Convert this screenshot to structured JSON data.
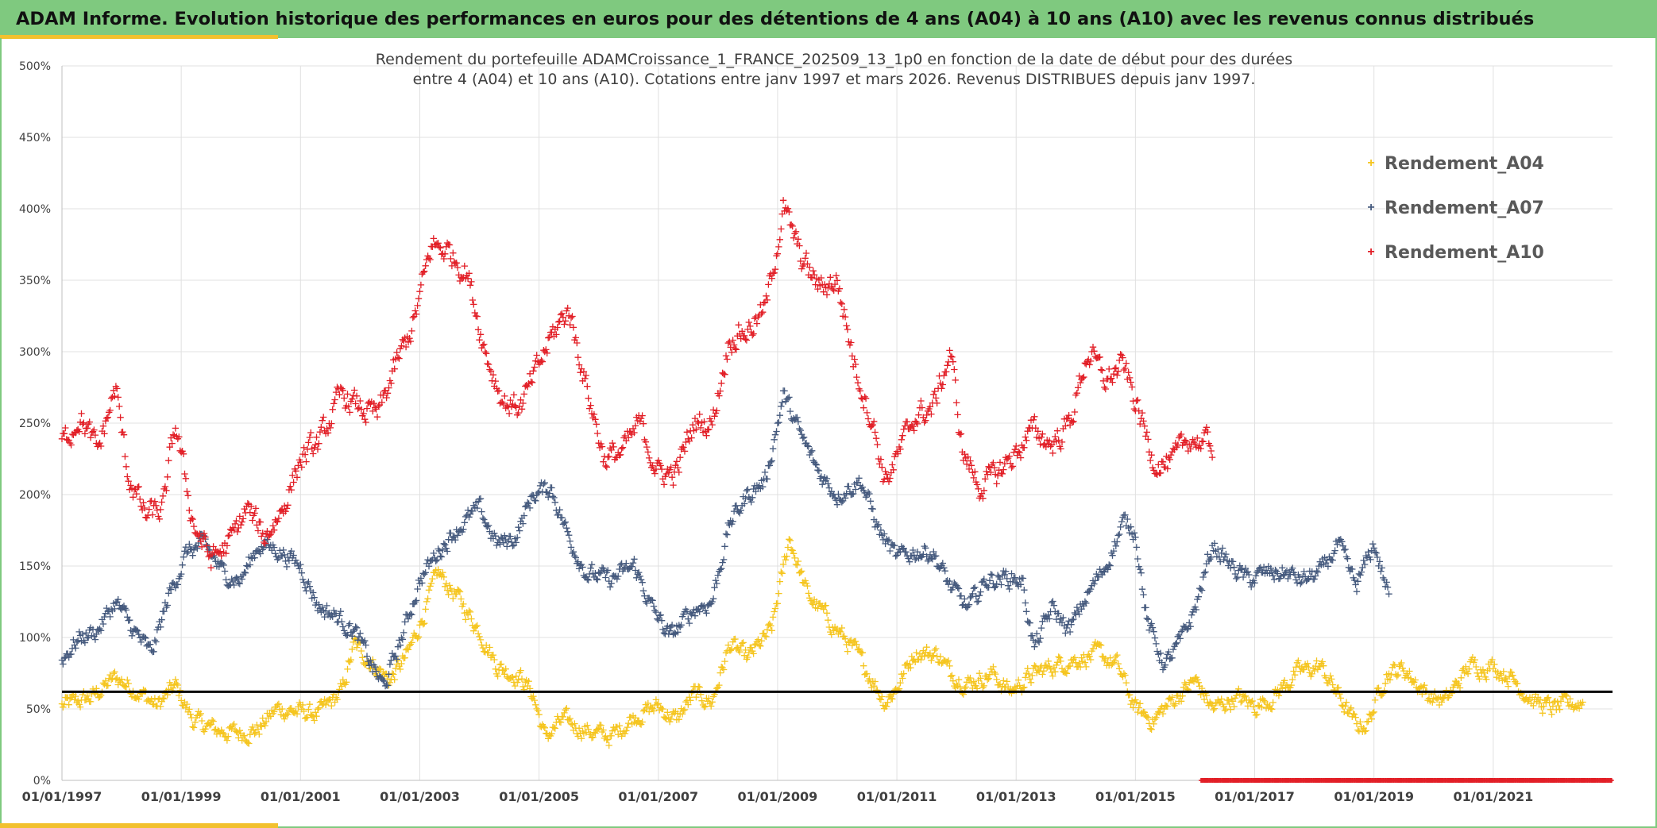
{
  "header": {
    "title": "ADAM Informe. Evolution historique des performances en euros pour des détentions de 4 ans (A04) à 10 ans (A10) avec les revenus connus distribués"
  },
  "chart_data": {
    "type": "scatter",
    "title_line1": "Rendement du portefeuille ADAMCroissance_1_FRANCE_202509_13_1p0  en fonction de la date de début pour des durées",
    "title_line2": "entre 4 (A04) et 10 ans (A10). Cotations entre janv 1997 et mars 2026. Revenus DISTRIBUES depuis janv 1997.",
    "xlabel": "",
    "ylabel": "",
    "xlim": [
      1997.0,
      2023.0
    ],
    "ylim": [
      0,
      500
    ],
    "x_ticks": [
      1997,
      1999,
      2001,
      2003,
      2005,
      2007,
      2009,
      2011,
      2013,
      2015,
      2017,
      2019,
      2021
    ],
    "x_tick_labels": [
      "01/01/1997",
      "01/01/1999",
      "01/01/2001",
      "01/01/2003",
      "01/01/2005",
      "01/01/2007",
      "01/01/2009",
      "01/01/2011",
      "01/01/2013",
      "01/01/2015",
      "01/01/2017",
      "01/01/2019",
      "01/01/2021"
    ],
    "y_ticks": [
      0,
      50,
      100,
      150,
      200,
      250,
      300,
      350,
      400,
      450,
      500
    ],
    "y_tick_labels": [
      "0%",
      "50%",
      "100%",
      "150%",
      "200%",
      "250%",
      "300%",
      "350%",
      "400%",
      "450%",
      "500%"
    ],
    "reference_line": {
      "y": 62,
      "color": "#000000"
    },
    "legend_position": "top-right",
    "grid": true,
    "series": [
      {
        "name": "Rendement_A04",
        "marker": "+",
        "color": "#f5c51f",
        "x_start": 1997.0,
        "x_end": 2022.5,
        "anchors": [
          [
            1997.0,
            52
          ],
          [
            1997.5,
            58
          ],
          [
            1997.9,
            72
          ],
          [
            1998.3,
            62
          ],
          [
            1998.6,
            52
          ],
          [
            1998.9,
            66
          ],
          [
            1999.2,
            42
          ],
          [
            1999.6,
            35
          ],
          [
            2000.0,
            33
          ],
          [
            2000.3,
            36
          ],
          [
            2000.6,
            50
          ],
          [
            2001.0,
            48
          ],
          [
            2001.3,
            46
          ],
          [
            2001.7,
            62
          ],
          [
            2001.9,
            95
          ],
          [
            2002.2,
            82
          ],
          [
            2002.5,
            70
          ],
          [
            2002.8,
            88
          ],
          [
            2003.1,
            120
          ],
          [
            2003.3,
            145
          ],
          [
            2003.6,
            130
          ],
          [
            2004.0,
            105
          ],
          [
            2004.3,
            80
          ],
          [
            2004.7,
            72
          ],
          [
            2004.9,
            60
          ],
          [
            2005.1,
            30
          ],
          [
            2005.4,
            42
          ],
          [
            2005.8,
            35
          ],
          [
            2006.2,
            30
          ],
          [
            2006.6,
            45
          ],
          [
            2007.0,
            52
          ],
          [
            2007.3,
            42
          ],
          [
            2007.6,
            60
          ],
          [
            2007.9,
            55
          ],
          [
            2008.2,
            95
          ],
          [
            2008.5,
            85
          ],
          [
            2008.9,
            105
          ],
          [
            2009.2,
            170
          ],
          [
            2009.5,
            130
          ],
          [
            2009.9,
            110
          ],
          [
            2010.3,
            90
          ],
          [
            2010.6,
            70
          ],
          [
            2010.8,
            55
          ],
          [
            2011.0,
            65
          ],
          [
            2011.3,
            90
          ],
          [
            2011.7,
            88
          ],
          [
            2011.9,
            75
          ],
          [
            2012.2,
            68
          ],
          [
            2012.6,
            75
          ],
          [
            2012.9,
            62
          ],
          [
            2013.2,
            72
          ],
          [
            2013.6,
            80
          ],
          [
            2014.0,
            85
          ],
          [
            2014.4,
            88
          ],
          [
            2014.7,
            80
          ],
          [
            2015.0,
            50
          ],
          [
            2015.3,
            42
          ],
          [
            2015.6,
            55
          ],
          [
            2016.0,
            70
          ],
          [
            2016.3,
            50
          ],
          [
            2016.7,
            58
          ],
          [
            2017.0,
            52
          ],
          [
            2017.3,
            58
          ],
          [
            2017.7,
            75
          ],
          [
            2018.1,
            80
          ],
          [
            2018.4,
            60
          ],
          [
            2018.7,
            38
          ],
          [
            2018.9,
            40
          ],
          [
            2019.2,
            75
          ],
          [
            2019.5,
            78
          ],
          [
            2019.9,
            60
          ],
          [
            2020.2,
            55
          ],
          [
            2020.6,
            80
          ],
          [
            2021.0,
            80
          ],
          [
            2021.3,
            72
          ],
          [
            2021.7,
            55
          ],
          [
            2022.0,
            50
          ],
          [
            2022.5,
            55
          ]
        ]
      },
      {
        "name": "Rendement_A07",
        "marker": "+",
        "color": "#44597d",
        "x_start": 1997.0,
        "x_end": 2019.25,
        "anchors": [
          [
            1997.0,
            85
          ],
          [
            1997.3,
            100
          ],
          [
            1997.6,
            105
          ],
          [
            1997.9,
            125
          ],
          [
            1998.2,
            105
          ],
          [
            1998.5,
            88
          ],
          [
            1998.8,
            130
          ],
          [
            1999.1,
            160
          ],
          [
            1999.4,
            165
          ],
          [
            1999.7,
            145
          ],
          [
            2000.0,
            140
          ],
          [
            2000.3,
            165
          ],
          [
            2000.6,
            162
          ],
          [
            2001.0,
            150
          ],
          [
            2001.3,
            122
          ],
          [
            2001.6,
            115
          ],
          [
            2001.9,
            105
          ],
          [
            2002.2,
            80
          ],
          [
            2002.4,
            65
          ],
          [
            2002.7,
            100
          ],
          [
            2003.0,
            140
          ],
          [
            2003.3,
            160
          ],
          [
            2003.6,
            175
          ],
          [
            2004.0,
            190
          ],
          [
            2004.3,
            165
          ],
          [
            2004.6,
            170
          ],
          [
            2004.9,
            200
          ],
          [
            2005.2,
            205
          ],
          [
            2005.5,
            170
          ],
          [
            2005.8,
            145
          ],
          [
            2006.2,
            140
          ],
          [
            2006.6,
            150
          ],
          [
            2006.9,
            120
          ],
          [
            2007.2,
            100
          ],
          [
            2007.6,
            120
          ],
          [
            2007.9,
            125
          ],
          [
            2008.2,
            180
          ],
          [
            2008.5,
            200
          ],
          [
            2008.8,
            210
          ],
          [
            2009.1,
            270
          ],
          [
            2009.4,
            240
          ],
          [
            2009.7,
            215
          ],
          [
            2010.0,
            200
          ],
          [
            2010.4,
            210
          ],
          [
            2010.7,
            175
          ],
          [
            2011.0,
            155
          ],
          [
            2011.3,
            160
          ],
          [
            2011.6,
            160
          ],
          [
            2011.9,
            135
          ],
          [
            2012.2,
            120
          ],
          [
            2012.5,
            140
          ],
          [
            2012.8,
            142
          ],
          [
            2013.1,
            140
          ],
          [
            2013.3,
            92
          ],
          [
            2013.6,
            120
          ],
          [
            2013.9,
            105
          ],
          [
            2014.2,
            130
          ],
          [
            2014.5,
            150
          ],
          [
            2014.8,
            180
          ],
          [
            2015.0,
            175
          ],
          [
            2015.2,
            110
          ],
          [
            2015.5,
            80
          ],
          [
            2015.8,
            100
          ],
          [
            2016.0,
            120
          ],
          [
            2016.3,
            165
          ],
          [
            2016.6,
            150
          ],
          [
            2016.9,
            140
          ],
          [
            2017.2,
            145
          ],
          [
            2017.5,
            145
          ],
          [
            2017.8,
            140
          ],
          [
            2018.1,
            145
          ],
          [
            2018.4,
            165
          ],
          [
            2018.7,
            135
          ],
          [
            2019.0,
            165
          ],
          [
            2019.25,
            130
          ]
        ]
      },
      {
        "name": "Rendement_A10",
        "marker": "+",
        "color": "#e21e26",
        "x_start": 1997.0,
        "x_end": 2016.3,
        "anchors": [
          [
            1997.0,
            235
          ],
          [
            1997.3,
            255
          ],
          [
            1997.6,
            230
          ],
          [
            1997.9,
            275
          ],
          [
            1998.1,
            215
          ],
          [
            1998.4,
            185
          ],
          [
            1998.7,
            190
          ],
          [
            1998.9,
            250
          ],
          [
            1999.2,
            180
          ],
          [
            1999.5,
            155
          ],
          [
            1999.8,
            165
          ],
          [
            2000.1,
            190
          ],
          [
            2000.4,
            170
          ],
          [
            2000.7,
            190
          ],
          [
            2001.0,
            225
          ],
          [
            2001.3,
            235
          ],
          [
            2001.7,
            270
          ],
          [
            2002.0,
            260
          ],
          [
            2002.3,
            255
          ],
          [
            2002.6,
            290
          ],
          [
            2002.9,
            320
          ],
          [
            2003.2,
            375
          ],
          [
            2003.5,
            370
          ],
          [
            2003.8,
            355
          ],
          [
            2004.1,
            300
          ],
          [
            2004.4,
            265
          ],
          [
            2004.7,
            262
          ],
          [
            2004.9,
            280
          ],
          [
            2005.2,
            310
          ],
          [
            2005.5,
            330
          ],
          [
            2005.8,
            275
          ],
          [
            2006.1,
            225
          ],
          [
            2006.4,
            230
          ],
          [
            2006.7,
            250
          ],
          [
            2007.0,
            215
          ],
          [
            2007.3,
            215
          ],
          [
            2007.6,
            250
          ],
          [
            2007.9,
            250
          ],
          [
            2008.2,
            310
          ],
          [
            2008.5,
            315
          ],
          [
            2008.8,
            330
          ],
          [
            2009.1,
            400
          ],
          [
            2009.4,
            365
          ],
          [
            2009.7,
            345
          ],
          [
            2010.0,
            350
          ],
          [
            2010.3,
            290
          ],
          [
            2010.6,
            250
          ],
          [
            2010.8,
            210
          ],
          [
            2011.0,
            225
          ],
          [
            2011.3,
            255
          ],
          [
            2011.6,
            260
          ],
          [
            2011.9,
            300
          ],
          [
            2012.1,
            230
          ],
          [
            2012.4,
            205
          ],
          [
            2012.7,
            215
          ],
          [
            2013.0,
            230
          ],
          [
            2013.3,
            245
          ],
          [
            2013.6,
            235
          ],
          [
            2013.9,
            250
          ],
          [
            2014.2,
            300
          ],
          [
            2014.5,
            280
          ],
          [
            2014.8,
            290
          ],
          [
            2015.0,
            265
          ],
          [
            2015.3,
            225
          ],
          [
            2015.6,
            220
          ],
          [
            2015.9,
            240
          ],
          [
            2016.2,
            235
          ]
        ]
      }
    ],
    "timeline_bar": {
      "x_start": 2016.1,
      "x_end": 2023.0,
      "color": "#e21e26"
    }
  },
  "legend": {
    "items": [
      {
        "label": "Rendement_A04",
        "marker": "+",
        "color": "#f5c51f"
      },
      {
        "label": "Rendement_A07",
        "marker": "+",
        "color": "#44597d"
      },
      {
        "label": "Rendement_A10",
        "marker": "+",
        "color": "#e21e26"
      }
    ]
  }
}
